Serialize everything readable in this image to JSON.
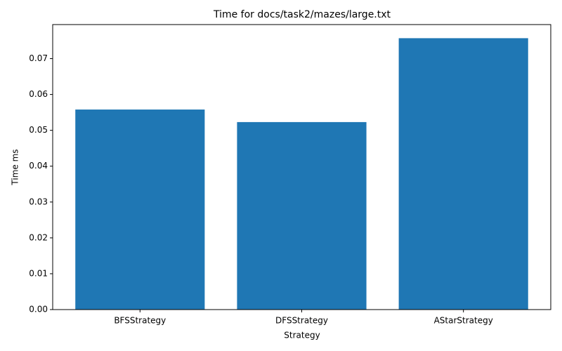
{
  "chart_data": {
    "type": "bar",
    "title": "Time for docs/task2/mazes/large.txt",
    "x_label": "Strategy",
    "y_label": "Time ms",
    "categories": [
      "BFSStrategy",
      "DFSStrategy",
      "AStarStrategy"
    ],
    "values": [
      0.0558,
      0.0523,
      0.0757
    ],
    "color": "#1f77b4",
    "ylim": [
      0,
      0.0795
    ],
    "yticks": [
      {
        "value": 0,
        "label": "0.00"
      },
      {
        "value": 0.01,
        "label": "0.01"
      },
      {
        "value": 0.02,
        "label": "0.02"
      },
      {
        "value": 0.03,
        "label": "0.03"
      },
      {
        "value": 0.04,
        "label": "0.04"
      },
      {
        "value": 0.05,
        "label": "0.05"
      },
      {
        "value": 0.06,
        "label": "0.06"
      },
      {
        "value": 0.07,
        "label": "0.07"
      }
    ],
    "grid": false
  }
}
